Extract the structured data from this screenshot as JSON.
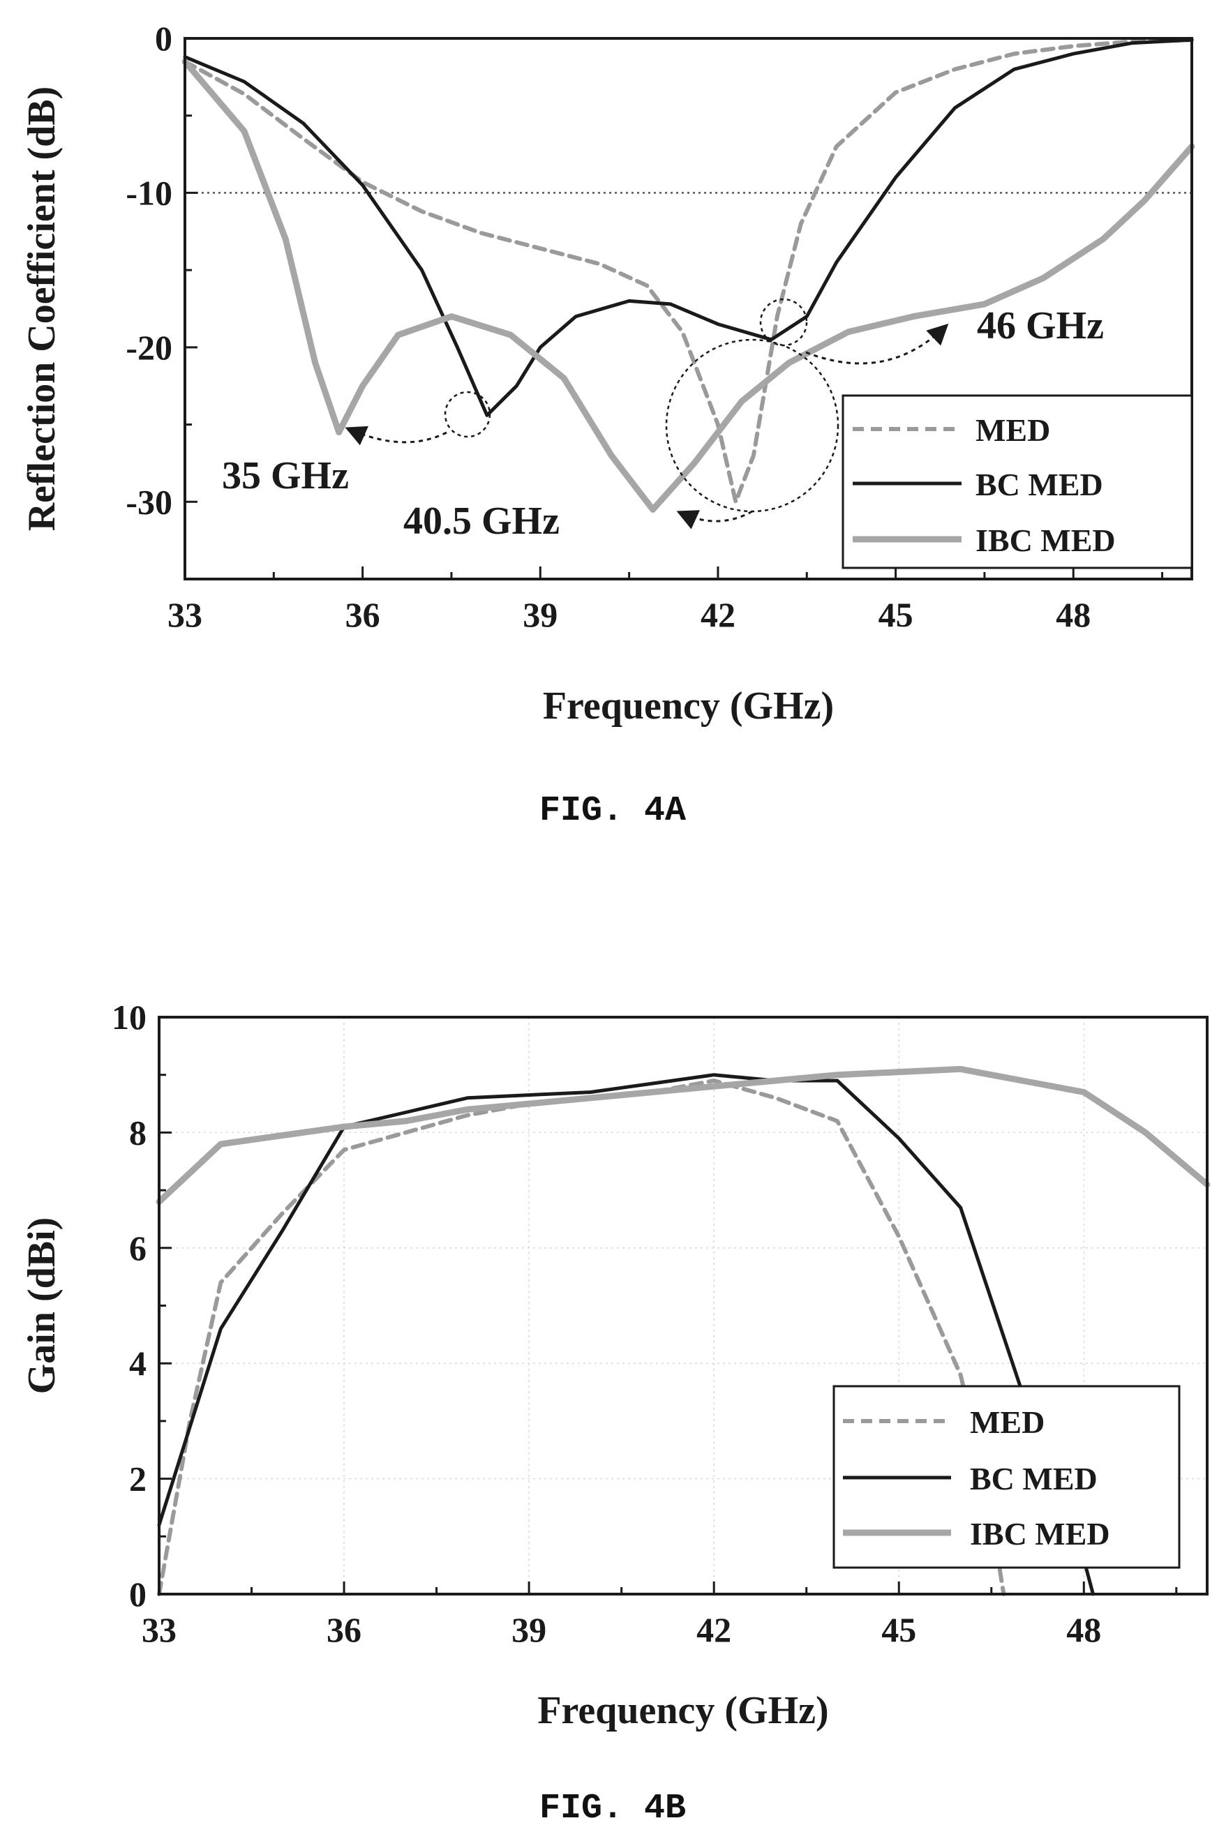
{
  "chart_data": [
    {
      "type": "line",
      "caption": "FIG. 4A",
      "xlabel": "Frequency (GHz)",
      "ylabel": "Reflection Coefficient (dB)",
      "xlim": [
        33,
        50
      ],
      "ylim": [
        -35,
        0
      ],
      "xticks": [
        33,
        36,
        39,
        42,
        45,
        48
      ],
      "yticks": [
        0,
        -10,
        -20,
        -30
      ],
      "grid": false,
      "reference_line_y": -10,
      "legend_position": "bottom-right",
      "series": [
        {
          "name": "MED",
          "style": "dashed",
          "color": "#9a9a9a",
          "points": [
            [
              33,
              -1.5
            ],
            [
              34,
              -3.6
            ],
            [
              35,
              -6.5
            ],
            [
              36,
              -9.3
            ],
            [
              37,
              -11.2
            ],
            [
              38,
              -12.6
            ],
            [
              39,
              -13.6
            ],
            [
              40,
              -14.6
            ],
            [
              40.8,
              -16
            ],
            [
              41.4,
              -19
            ],
            [
              42,
              -25
            ],
            [
              42.3,
              -30
            ],
            [
              42.6,
              -27
            ],
            [
              43,
              -18
            ],
            [
              43.4,
              -12
            ],
            [
              44,
              -7
            ],
            [
              45,
              -3.5
            ],
            [
              46,
              -2
            ],
            [
              47,
              -1
            ],
            [
              48,
              -0.5
            ],
            [
              49,
              -0.2
            ],
            [
              50,
              -0.1
            ]
          ]
        },
        {
          "name": "BC MED",
          "style": "solid",
          "color": "#1a1a1a",
          "points": [
            [
              33,
              -1.2
            ],
            [
              34,
              -2.8
            ],
            [
              35,
              -5.5
            ],
            [
              36,
              -9.5
            ],
            [
              37,
              -15
            ],
            [
              37.6,
              -20
            ],
            [
              38.1,
              -24.4
            ],
            [
              38.6,
              -22.5
            ],
            [
              39,
              -20
            ],
            [
              39.6,
              -18
            ],
            [
              40.5,
              -17
            ],
            [
              41.2,
              -17.2
            ],
            [
              42,
              -18.5
            ],
            [
              42.9,
              -19.5
            ],
            [
              43.5,
              -18
            ],
            [
              44,
              -14.5
            ],
            [
              45,
              -9
            ],
            [
              46,
              -4.5
            ],
            [
              47,
              -2
            ],
            [
              48,
              -1
            ],
            [
              49,
              -0.3
            ],
            [
              50,
              -0.1
            ]
          ]
        },
        {
          "name": "IBC MED",
          "style": "solid",
          "color": "#a6a6a6",
          "points": [
            [
              33,
              -1.5
            ],
            [
              34,
              -6
            ],
            [
              34.7,
              -13
            ],
            [
              35.2,
              -21
            ],
            [
              35.6,
              -25.5
            ],
            [
              36,
              -22.5
            ],
            [
              36.6,
              -19.2
            ],
            [
              37.5,
              -18
            ],
            [
              38.5,
              -19.2
            ],
            [
              39.4,
              -22
            ],
            [
              40.2,
              -27
            ],
            [
              40.9,
              -30.5
            ],
            [
              41.6,
              -27.5
            ],
            [
              42.4,
              -23.5
            ],
            [
              43.2,
              -21
            ],
            [
              44.2,
              -19
            ],
            [
              45.3,
              -18
            ],
            [
              46.5,
              -17.2
            ],
            [
              47.5,
              -15.5
            ],
            [
              48.5,
              -13
            ],
            [
              49.2,
              -10.5
            ],
            [
              50,
              -7
            ]
          ]
        }
      ],
      "annotations": [
        "35 GHz",
        "40.5 GHz",
        "46 GHz"
      ]
    },
    {
      "type": "line",
      "caption": "FIG. 4B",
      "xlabel": "Frequency (GHz)",
      "ylabel": "Gain (dBi)",
      "xlim": [
        33,
        50
      ],
      "ylim": [
        0,
        10
      ],
      "xticks": [
        33,
        36,
        39,
        42,
        45,
        48
      ],
      "yticks": [
        0,
        2,
        4,
        6,
        8,
        10
      ],
      "grid": true,
      "legend_position": "bottom-right",
      "series": [
        {
          "name": "MED",
          "style": "dashed",
          "color": "#9a9a9a",
          "points": [
            [
              33,
              0
            ],
            [
              33.5,
              3
            ],
            [
              34,
              5.4
            ],
            [
              35,
              6.6
            ],
            [
              36,
              7.7
            ],
            [
              37,
              8
            ],
            [
              38,
              8.3
            ],
            [
              39,
              8.5
            ],
            [
              40,
              8.6
            ],
            [
              41,
              8.7
            ],
            [
              42,
              8.9
            ],
            [
              43,
              8.6
            ],
            [
              44,
              8.2
            ],
            [
              45,
              6.2
            ],
            [
              46,
              3.8
            ],
            [
              46.4,
              2
            ],
            [
              46.7,
              0
            ]
          ]
        },
        {
          "name": "BC MED",
          "style": "solid",
          "color": "#1a1a1a",
          "points": [
            [
              33,
              1.2
            ],
            [
              34,
              4.6
            ],
            [
              35,
              6.3
            ],
            [
              36,
              8.1
            ],
            [
              37,
              8.35
            ],
            [
              38,
              8.6
            ],
            [
              39,
              8.65
            ],
            [
              40,
              8.7
            ],
            [
              41,
              8.85
            ],
            [
              42,
              9
            ],
            [
              43,
              8.9
            ],
            [
              44,
              8.9
            ],
            [
              45,
              7.9
            ],
            [
              46,
              6.7
            ],
            [
              47,
              3.5
            ],
            [
              48,
              0.6
            ],
            [
              48.15,
              0
            ]
          ]
        },
        {
          "name": "IBC MED",
          "style": "solid",
          "color": "#a6a6a6",
          "points": [
            [
              33,
              6.8
            ],
            [
              34,
              7.8
            ],
            [
              35,
              7.95
            ],
            [
              36,
              8.1
            ],
            [
              37,
              8.2
            ],
            [
              38,
              8.4
            ],
            [
              39,
              8.5
            ],
            [
              40,
              8.6
            ],
            [
              41,
              8.7
            ],
            [
              42,
              8.8
            ],
            [
              43,
              8.9
            ],
            [
              44,
              9
            ],
            [
              45,
              9.05
            ],
            [
              46,
              9.1
            ],
            [
              47,
              8.9
            ],
            [
              48,
              8.7
            ],
            [
              49,
              8
            ],
            [
              50,
              7.1
            ]
          ]
        }
      ]
    }
  ]
}
